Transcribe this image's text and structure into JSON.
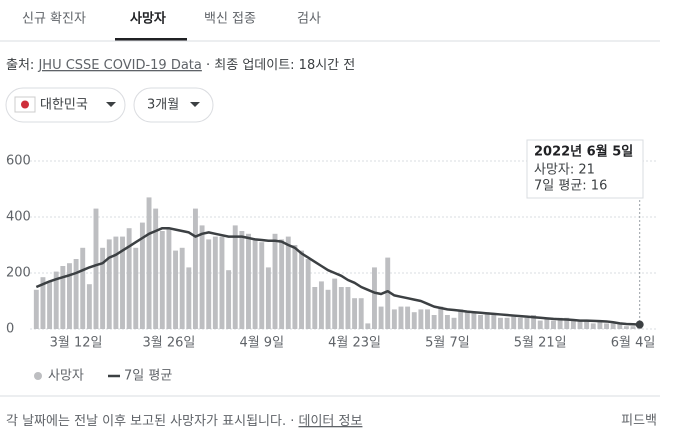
{
  "tabs": [
    "신규 확진자",
    "사망자",
    "백신 접종",
    "검사"
  ],
  "source": {
    "label": "출처:",
    "link": "JHU CSSE COVID-19 Data",
    "updated": "· 최종 업데이트: 18시간 전"
  },
  "filters": [
    "대한민국",
    "3개월"
  ],
  "footer": {
    "note": "각 날짜에는 전날 이후 보고된 사망자가 표시됩니다. ·",
    "link": "데이터 정보",
    "feedback": "피드백"
  },
  "chart_data": {
    "type": "bar",
    "categories": [
      null,
      null,
      null,
      null,
      null,
      null,
      "3월 12일",
      null,
      null,
      null,
      null,
      null,
      null,
      null,
      null,
      null,
      null,
      null,
      null,
      null,
      "3월 26일",
      null,
      null,
      null,
      null,
      null,
      null,
      null,
      null,
      null,
      null,
      null,
      null,
      null,
      "4월 9일",
      null,
      null,
      null,
      null,
      null,
      null,
      null,
      null,
      null,
      null,
      null,
      null,
      null,
      "4월 23일",
      null,
      null,
      null,
      null,
      null,
      null,
      null,
      null,
      null,
      null,
      null,
      null,
      null,
      "5월 7일",
      null,
      null,
      null,
      null,
      null,
      null,
      null,
      null,
      null,
      null,
      null,
      null,
      null,
      "5월 21일",
      null,
      null,
      null,
      null,
      null,
      null,
      null,
      null,
      null,
      null,
      null,
      null,
      null,
      "6월 4일",
      null
    ],
    "series": [
      {
        "name": "사망자",
        "type": "bar",
        "color": "#bdbec1",
        "values": [
          140,
          185,
          170,
          205,
          225,
          235,
          250,
          290,
          160,
          430,
          290,
          320,
          330,
          330,
          360,
          290,
          380,
          470,
          430,
          350,
          360,
          280,
          290,
          220,
          430,
          370,
          320,
          330,
          330,
          210,
          370,
          350,
          340,
          320,
          310,
          220,
          340,
          320,
          330,
          300,
          280,
          250,
          150,
          170,
          140,
          180,
          150,
          150,
          110,
          110,
          20,
          220,
          80,
          255,
          70,
          80,
          80,
          60,
          70,
          70,
          50,
          80,
          50,
          40,
          70,
          60,
          60,
          50,
          60,
          50,
          40,
          40,
          50,
          40,
          40,
          50,
          30,
          40,
          30,
          40,
          40,
          30,
          30,
          30,
          20,
          30,
          20,
          20,
          20,
          10,
          10,
          21
        ]
      },
      {
        "name": "7일 평균",
        "type": "line",
        "color": "#3c4043",
        "values": [
          150,
          160,
          170,
          178,
          185,
          192,
          200,
          210,
          220,
          228,
          235,
          255,
          265,
          280,
          295,
          310,
          325,
          340,
          350,
          360,
          360,
          355,
          350,
          345,
          330,
          340,
          345,
          340,
          335,
          330,
          330,
          330,
          325,
          320,
          318,
          315,
          315,
          312,
          300,
          290,
          270,
          255,
          240,
          225,
          210,
          200,
          190,
          175,
          165,
          150,
          140,
          130,
          125,
          135,
          120,
          115,
          110,
          105,
          100,
          90,
          80,
          75,
          70,
          68,
          65,
          62,
          60,
          58,
          56,
          54,
          52,
          50,
          48,
          46,
          44,
          42,
          40,
          38,
          36,
          35,
          34,
          32,
          30,
          30,
          29,
          28,
          27,
          24,
          20,
          18,
          17,
          16
        ]
      }
    ],
    "ylim": [
      0,
      600
    ],
    "yticks": [
      0,
      200,
      400,
      600
    ],
    "grid": true,
    "tooltip": {
      "date": "2022년 6월 5일",
      "lines": [
        "사망자: 21",
        "7일 평균: 16"
      ]
    }
  }
}
